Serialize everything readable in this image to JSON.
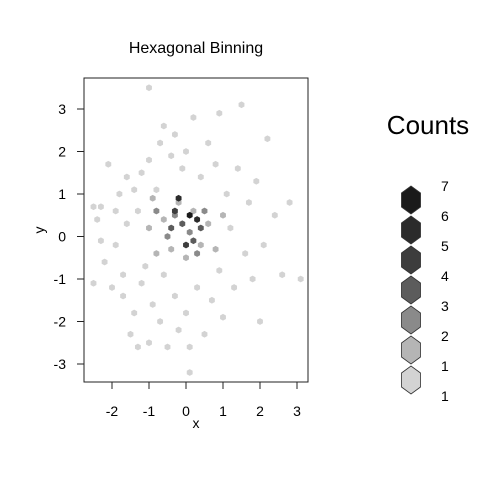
{
  "chart_data": {
    "type": "hexbin",
    "title": "Hexagonal Binning",
    "xlabel": "x",
    "ylabel": "y",
    "xlim": [
      -2.8,
      3.3
    ],
    "ylim": [
      -3.4,
      3.7
    ],
    "x_ticks": [
      -2,
      -1,
      0,
      1,
      2,
      3
    ],
    "y_ticks": [
      -3,
      -2,
      -1,
      0,
      1,
      2,
      3
    ],
    "x_tick_labels": [
      "-2",
      "-1",
      "0",
      "1",
      "2",
      "3"
    ],
    "y_tick_labels": [
      "-3",
      "-2",
      "-1",
      "0",
      "1",
      "2",
      "3"
    ],
    "legend": {
      "title": "Counts",
      "position": "right",
      "levels": [
        {
          "count": 7,
          "color": "#1a1a1a"
        },
        {
          "count": 6,
          "color": "#2b2b2b"
        },
        {
          "count": 5,
          "color": "#3d3d3d"
        },
        {
          "count": 4,
          "color": "#5c5c5c"
        },
        {
          "count": 3,
          "color": "#8a8a8a"
        },
        {
          "count": 2,
          "color": "#b5b5b5"
        },
        {
          "count": 1,
          "color": "#d3d3d3"
        }
      ]
    },
    "hexagons": [
      {
        "x": -2.5,
        "y": 0.7,
        "count": 1
      },
      {
        "x": -2.3,
        "y": 0.7,
        "count": 1
      },
      {
        "x": -2.4,
        "y": 0.4,
        "count": 1
      },
      {
        "x": -2.3,
        "y": -0.1,
        "count": 1
      },
      {
        "x": -2.5,
        "y": -1.1,
        "count": 1
      },
      {
        "x": -2.2,
        "y": -0.6,
        "count": 1
      },
      {
        "x": -2.1,
        "y": 1.7,
        "count": 1
      },
      {
        "x": -2.0,
        "y": -1.2,
        "count": 1
      },
      {
        "x": -1.9,
        "y": 0.6,
        "count": 1
      },
      {
        "x": -1.9,
        "y": -0.2,
        "count": 1
      },
      {
        "x": -1.8,
        "y": 1.0,
        "count": 1
      },
      {
        "x": -1.7,
        "y": -1.4,
        "count": 1
      },
      {
        "x": -1.7,
        "y": -0.9,
        "count": 1
      },
      {
        "x": -1.6,
        "y": 1.4,
        "count": 1
      },
      {
        "x": -1.6,
        "y": 0.3,
        "count": 1
      },
      {
        "x": -1.5,
        "y": -2.3,
        "count": 1
      },
      {
        "x": -1.4,
        "y": -1.8,
        "count": 1
      },
      {
        "x": -1.4,
        "y": 1.1,
        "count": 1
      },
      {
        "x": -1.3,
        "y": -2.6,
        "count": 1
      },
      {
        "x": -1.3,
        "y": 0.6,
        "count": 1
      },
      {
        "x": -1.2,
        "y": -1.1,
        "count": 1
      },
      {
        "x": -1.2,
        "y": 1.5,
        "count": 1
      },
      {
        "x": -1.1,
        "y": -0.7,
        "count": 1
      },
      {
        "x": -1.0,
        "y": 3.5,
        "count": 1
      },
      {
        "x": -1.0,
        "y": -2.5,
        "count": 1
      },
      {
        "x": -1.0,
        "y": 1.8,
        "count": 1
      },
      {
        "x": -0.9,
        "y": -1.6,
        "count": 1
      },
      {
        "x": -0.8,
        "y": 1.1,
        "count": 1
      },
      {
        "x": -0.7,
        "y": 2.2,
        "count": 1
      },
      {
        "x": -0.7,
        "y": -2.0,
        "count": 1
      },
      {
        "x": -0.6,
        "y": -0.9,
        "count": 1
      },
      {
        "x": -0.6,
        "y": 2.6,
        "count": 1
      },
      {
        "x": -0.5,
        "y": -2.6,
        "count": 1
      },
      {
        "x": -0.4,
        "y": 1.9,
        "count": 1
      },
      {
        "x": -0.3,
        "y": -1.4,
        "count": 1
      },
      {
        "x": -0.3,
        "y": 2.4,
        "count": 1
      },
      {
        "x": -0.2,
        "y": -2.2,
        "count": 1
      },
      {
        "x": -0.1,
        "y": 1.6,
        "count": 1
      },
      {
        "x": 0.0,
        "y": -1.8,
        "count": 1
      },
      {
        "x": 0.0,
        "y": 2.0,
        "count": 1
      },
      {
        "x": 0.1,
        "y": -2.6,
        "count": 1
      },
      {
        "x": 0.1,
        "y": -3.2,
        "count": 1
      },
      {
        "x": 0.2,
        "y": 2.8,
        "count": 1
      },
      {
        "x": 0.3,
        "y": -1.2,
        "count": 1
      },
      {
        "x": 0.4,
        "y": 1.4,
        "count": 1
      },
      {
        "x": 0.5,
        "y": -2.3,
        "count": 1
      },
      {
        "x": 0.6,
        "y": 2.2,
        "count": 1
      },
      {
        "x": 0.7,
        "y": -1.5,
        "count": 1
      },
      {
        "x": 0.8,
        "y": 1.7,
        "count": 1
      },
      {
        "x": 0.9,
        "y": 2.9,
        "count": 1
      },
      {
        "x": 0.9,
        "y": -0.8,
        "count": 1
      },
      {
        "x": 1.0,
        "y": -1.9,
        "count": 1
      },
      {
        "x": 1.1,
        "y": 1.0,
        "count": 1
      },
      {
        "x": 1.2,
        "y": 0.2,
        "count": 1
      },
      {
        "x": 1.3,
        "y": -1.2,
        "count": 1
      },
      {
        "x": 1.4,
        "y": 1.6,
        "count": 1
      },
      {
        "x": 1.5,
        "y": 3.1,
        "count": 1
      },
      {
        "x": 1.6,
        "y": -0.4,
        "count": 1
      },
      {
        "x": 1.7,
        "y": 0.8,
        "count": 1
      },
      {
        "x": 1.8,
        "y": -1.0,
        "count": 1
      },
      {
        "x": 1.9,
        "y": 1.3,
        "count": 1
      },
      {
        "x": 2.1,
        "y": -0.2,
        "count": 1
      },
      {
        "x": 2.2,
        "y": 2.3,
        "count": 1
      },
      {
        "x": 2.4,
        "y": 0.5,
        "count": 1
      },
      {
        "x": 2.6,
        "y": -0.9,
        "count": 1
      },
      {
        "x": 2.8,
        "y": 0.8,
        "count": 1
      },
      {
        "x": 3.1,
        "y": -1.0,
        "count": 1
      },
      {
        "x": 2.0,
        "y": -2.0,
        "count": 1
      },
      {
        "x": -0.9,
        "y": 0.9,
        "count": 2
      },
      {
        "x": -0.6,
        "y": 0.4,
        "count": 2
      },
      {
        "x": -0.4,
        "y": -0.3,
        "count": 2
      },
      {
        "x": -0.2,
        "y": 0.8,
        "count": 2
      },
      {
        "x": 0.0,
        "y": -0.5,
        "count": 2
      },
      {
        "x": 0.2,
        "y": 0.6,
        "count": 2
      },
      {
        "x": 0.4,
        "y": -0.2,
        "count": 2
      },
      {
        "x": 0.6,
        "y": 0.3,
        "count": 2
      },
      {
        "x": -0.8,
        "y": -0.4,
        "count": 2
      },
      {
        "x": 0.8,
        "y": -0.3,
        "count": 2
      },
      {
        "x": -1.0,
        "y": 0.2,
        "count": 2
      },
      {
        "x": 1.0,
        "y": 0.5,
        "count": 2
      },
      {
        "x": -0.8,
        "y": 0.6,
        "count": 3
      },
      {
        "x": -0.5,
        "y": 0.0,
        "count": 3
      },
      {
        "x": -0.3,
        "y": 0.5,
        "count": 3
      },
      {
        "x": 0.1,
        "y": 0.1,
        "count": 3
      },
      {
        "x": 0.3,
        "y": -0.4,
        "count": 3
      },
      {
        "x": 0.5,
        "y": 0.6,
        "count": 3
      },
      {
        "x": -0.1,
        "y": 0.3,
        "count": 4
      },
      {
        "x": -0.4,
        "y": 0.2,
        "count": 4
      },
      {
        "x": 0.2,
        "y": -0.1,
        "count": 4
      },
      {
        "x": 0.4,
        "y": 0.2,
        "count": 4
      },
      {
        "x": -0.3,
        "y": 0.6,
        "count": 5
      },
      {
        "x": 0.0,
        "y": -0.2,
        "count": 5
      },
      {
        "x": -0.2,
        "y": 0.9,
        "count": 6
      },
      {
        "x": 0.3,
        "y": 0.4,
        "count": 6
      },
      {
        "x": 0.1,
        "y": 0.5,
        "count": 7
      }
    ]
  }
}
